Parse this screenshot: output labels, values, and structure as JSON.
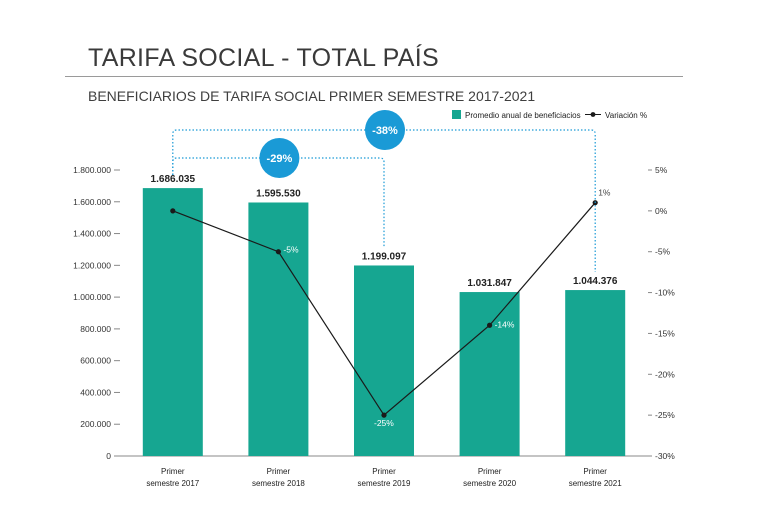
{
  "header": {
    "title": "TARIFA SOCIAL - TOTAL PAÍS",
    "subtitle": "BENEFICIARIOS DE TARIFA SOCIAL PRIMER SEMESTRE 2017-2021"
  },
  "colors": {
    "bar": "#16a691",
    "line": "#1a1a1a",
    "bubble": "#1a9ad6",
    "axis": "#333333"
  },
  "chart_data": {
    "type": "bar",
    "categories": [
      [
        "Primer",
        "semestre 2017"
      ],
      [
        "Primer",
        "semestre 2018"
      ],
      [
        "Primer",
        "semestre 2019"
      ],
      [
        "Primer",
        "semestre 2020"
      ],
      [
        "Primer",
        "semestre 2021"
      ]
    ],
    "series": [
      {
        "name": "Promedio anual de beneficiacios",
        "type": "bar",
        "axis": "left",
        "values": [
          1686035,
          1595530,
          1199097,
          1031847,
          1044376
        ],
        "labels": [
          "1.686.035",
          "1.595.530",
          "1.199.097",
          "1.031.847",
          "1.044.376"
        ]
      },
      {
        "name": "Variación %",
        "type": "line",
        "axis": "right",
        "values": [
          0,
          -5,
          -25,
          -14,
          1
        ],
        "labels": [
          "",
          "-5%",
          "-25%",
          "-14%",
          "1%"
        ]
      }
    ],
    "y_left": {
      "ylim": [
        0,
        1800000
      ],
      "ticks": [
        0,
        200000,
        400000,
        600000,
        800000,
        1000000,
        1200000,
        1400000,
        1600000,
        1800000
      ],
      "tick_labels": [
        "0",
        "200.000",
        "400.000",
        "600.000",
        "800.000",
        "1.000.000",
        "1.200.000",
        "1.400.000",
        "1.600.000",
        "1.800.000"
      ]
    },
    "y_right": {
      "ylim": [
        -30,
        5
      ],
      "ticks": [
        5,
        0,
        -5,
        -10,
        -15,
        -20,
        -25,
        -30
      ],
      "tick_labels": [
        "5%",
        "0%",
        "-5%",
        "-10%",
        "-15%",
        "-20%",
        "-25%",
        "-30%"
      ]
    },
    "legend": {
      "position": "top-right"
    },
    "annotations": [
      {
        "label": "-29%",
        "from": 0,
        "to": 2
      },
      {
        "label": "-38%",
        "from": 0,
        "to": 4
      }
    ]
  }
}
